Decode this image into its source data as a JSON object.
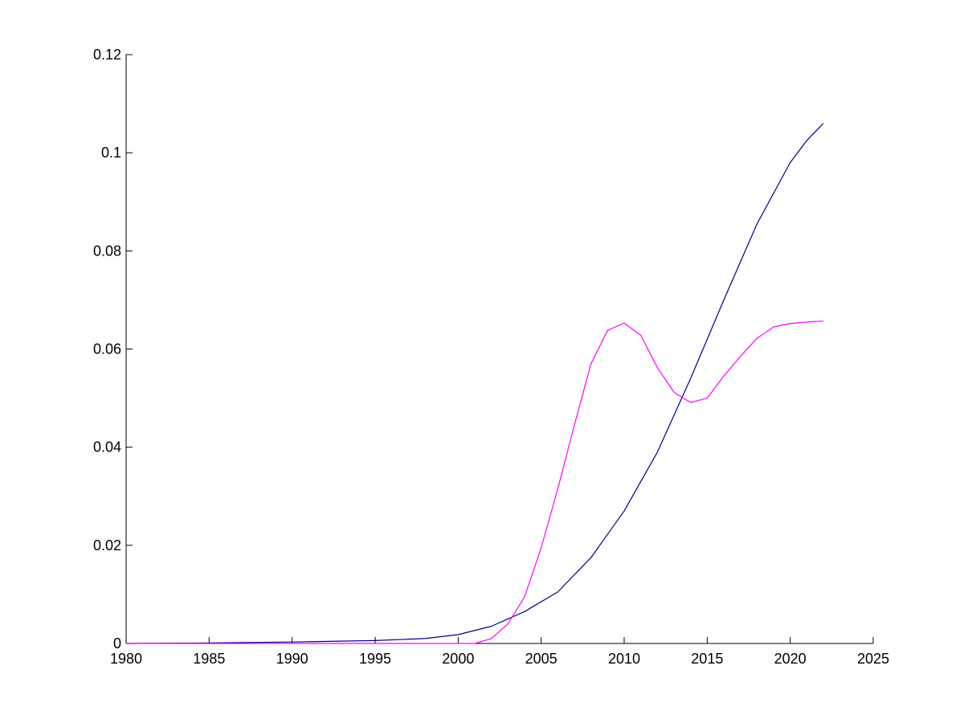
{
  "chart_data": {
    "type": "line",
    "title": "",
    "xlabel": "",
    "ylabel": "",
    "xlim": [
      1980,
      2025
    ],
    "ylim": [
      0,
      0.12
    ],
    "x_ticks": [
      1980,
      1985,
      1990,
      1995,
      2000,
      2005,
      2010,
      2015,
      2020,
      2025
    ],
    "x_tick_labels": [
      "1980",
      "1985",
      "1990",
      "1995",
      "2000",
      "2005",
      "2010",
      "2015",
      "2020",
      "2025"
    ],
    "y_ticks": [
      0,
      0.02,
      0.04,
      0.06,
      0.08,
      0.1,
      0.12
    ],
    "y_tick_labels": [
      "0",
      "0.02",
      "0.04",
      "0.06",
      "0.08",
      "0.1",
      "0.12"
    ],
    "grid": false,
    "legend": "none",
    "series": [
      {
        "color": "#00008b",
        "x": [
          1980,
          1985,
          1990,
          1995,
          1998,
          2000,
          2002,
          2004,
          2006,
          2008,
          2010,
          2012,
          2014,
          2016,
          2018,
          2020,
          2021,
          2022
        ],
        "y": [
          0.0,
          0.0001,
          0.0003,
          0.0006,
          0.001,
          0.0018,
          0.0035,
          0.0065,
          0.0105,
          0.0175,
          0.027,
          0.039,
          0.054,
          0.07,
          0.0855,
          0.098,
          0.1025,
          0.106
        ]
      },
      {
        "color": "#ff00ff",
        "x": [
          1980,
          2001,
          2002,
          2003,
          2004,
          2005,
          2006,
          2007,
          2008,
          2009,
          2010,
          2011,
          2012,
          2013,
          2014,
          2015,
          2016,
          2017,
          2018,
          2019,
          2020,
          2021,
          2022
        ],
        "y": [
          0.0,
          0.0,
          0.001,
          0.004,
          0.0095,
          0.0195,
          0.0315,
          0.0445,
          0.057,
          0.0638,
          0.0653,
          0.0628,
          0.0562,
          0.0512,
          0.0491,
          0.05,
          0.0545,
          0.0585,
          0.0622,
          0.0645,
          0.0652,
          0.0655,
          0.0657
        ]
      }
    ]
  }
}
